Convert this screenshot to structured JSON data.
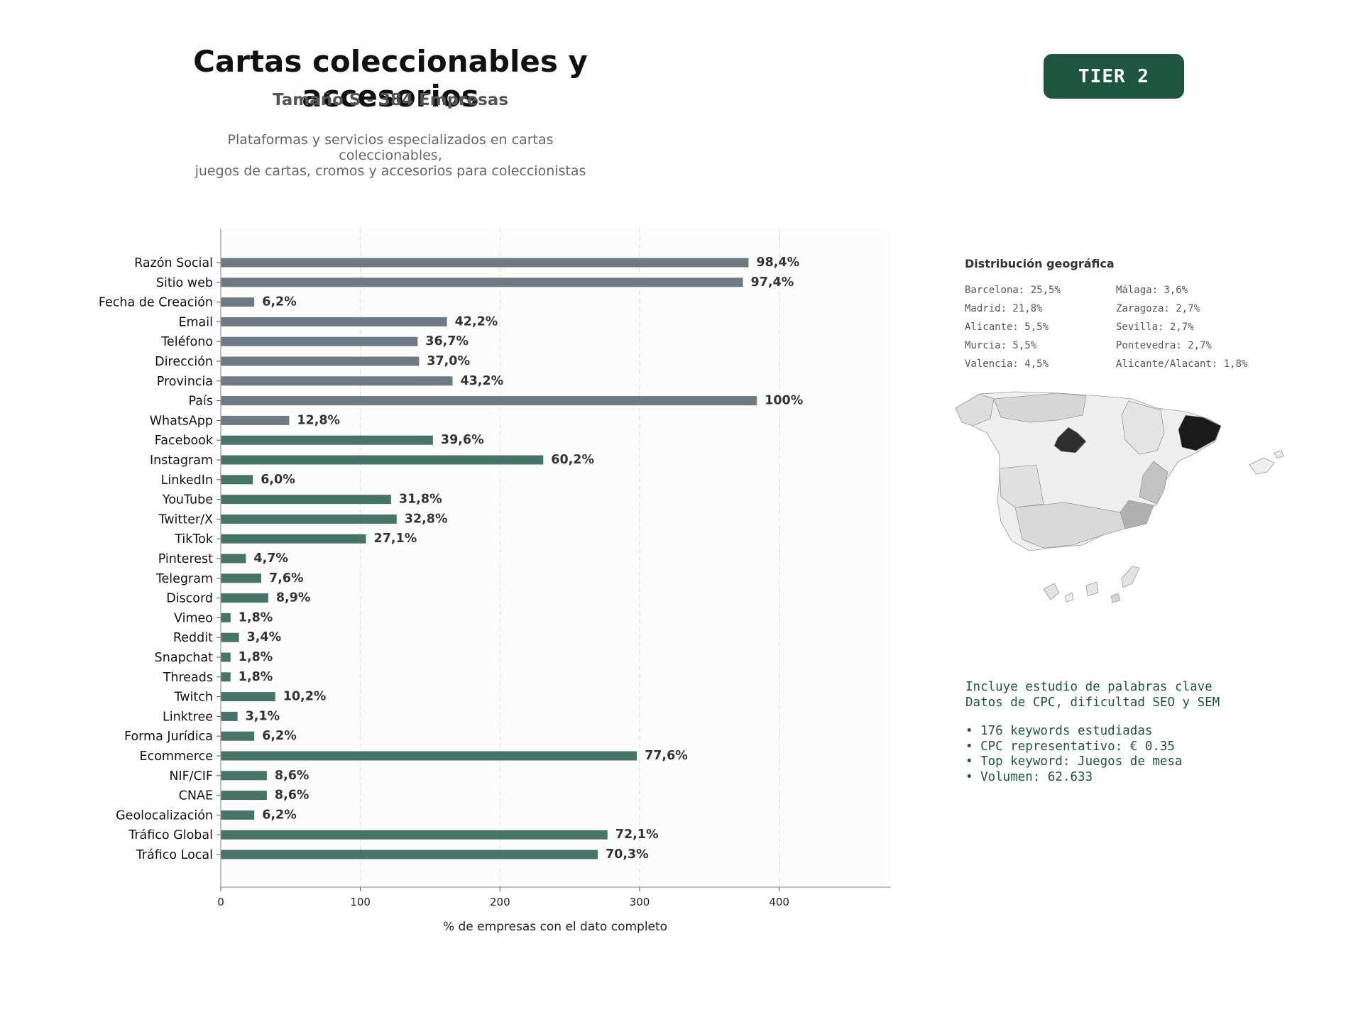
{
  "header": {
    "title": "Cartas coleccionables y accesorios",
    "subtitle": "Tamaño S - 384 Empresas",
    "description_line1": "Plataformas y servicios especializados en cartas coleccionables,",
    "description_line2": "juegos de cartas, cromos y accesorios para coleccionistas",
    "tier_badge": "TIER 2"
  },
  "colors": {
    "tier_bg": "#1e5541",
    "bar_gray": "#6e7a84",
    "bar_green": "#477466",
    "keyword_text": "#1e5541"
  },
  "chart_data": {
    "type": "bar",
    "orientation": "horizontal",
    "xlabel": "% de empresas con el dato completo",
    "xticks": [
      0,
      100,
      200,
      300,
      400
    ],
    "xlim": [
      0,
      480
    ],
    "grid": "vertical dashed",
    "categories": [
      "Razón Social",
      "Sitio web",
      "Fecha de Creación",
      "Email",
      "Teléfono",
      "Dirección",
      "Provincia",
      "País",
      "WhatsApp",
      "Facebook",
      "Instagram",
      "LinkedIn",
      "YouTube",
      "Twitter/X",
      "TikTok",
      "Pinterest",
      "Telegram",
      "Discord",
      "Vimeo",
      "Reddit",
      "Snapchat",
      "Threads",
      "Twitch",
      "Linktree",
      "Forma Jurídica",
      "Ecommerce",
      "NIF/CIF",
      "CNAE",
      "Geolocalización",
      "Tráfico Global",
      "Tráfico Local"
    ],
    "values": [
      378,
      374,
      24,
      162,
      141,
      142,
      166,
      384,
      49,
      152,
      231,
      23,
      122,
      126,
      104,
      18,
      29,
      34,
      7,
      13,
      7,
      7,
      39,
      12,
      24,
      298,
      33,
      33,
      24,
      277,
      270
    ],
    "labels": [
      "98,4%",
      "97,4%",
      "6,2%",
      "42,2%",
      "36,7%",
      "37,0%",
      "43,2%",
      "100%",
      "12,8%",
      "39,6%",
      "60,2%",
      "6,0%",
      "31,8%",
      "32,8%",
      "27,1%",
      "4,7%",
      "7,6%",
      "8,9%",
      "1,8%",
      "3,4%",
      "1,8%",
      "1,8%",
      "10,2%",
      "3,1%",
      "6,2%",
      "77,6%",
      "8,6%",
      "8,6%",
      "6,2%",
      "72,1%",
      "70,3%"
    ],
    "groups": [
      "gray",
      "gray",
      "gray",
      "gray",
      "gray",
      "gray",
      "gray",
      "gray",
      "gray",
      "green",
      "green",
      "green",
      "green",
      "green",
      "green",
      "green",
      "green",
      "green",
      "green",
      "green",
      "green",
      "green",
      "green",
      "green",
      "green",
      "green",
      "green",
      "green",
      "green",
      "green",
      "green"
    ]
  },
  "geo": {
    "title": "Distribución geográfica",
    "left": [
      "Barcelona: 25,5%",
      "Madrid: 21,8%",
      "Alicante: 5,5%",
      "Murcia: 5,5%",
      "Valencia: 4,5%"
    ],
    "right": [
      "Málaga: 3,6%",
      "Zaragoza: 2,7%",
      "Sevilla: 2,7%",
      "Pontevedra: 2,7%",
      "Alicante/Alacant: 1,8%"
    ]
  },
  "keywords": {
    "line1": "Incluye estudio de palabras clave",
    "line2": "Datos de CPC, dificultad SEO y SEM",
    "bullet1": "• 176 keywords estudiadas",
    "bullet2": "• CPC representativo: € 0.35",
    "bullet3": "• Top keyword: Juegos de mesa",
    "bullet4": "• Volumen: 62.633"
  }
}
